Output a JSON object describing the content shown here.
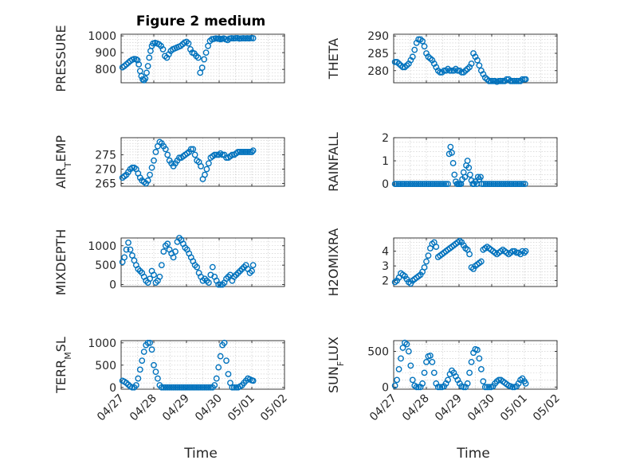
{
  "figure": {
    "title": "Figure 2 medium",
    "xlabel": "Time"
  },
  "chart_data": [
    {
      "type": "scatter",
      "ylabel": "PRESSURE",
      "ylim": [
        720,
        1010
      ],
      "yticks": [
        800,
        900,
        1000
      ],
      "xlim": [
        0,
        5
      ],
      "xticklabels": [],
      "title": "Figure 2 medium",
      "x": [
        0.04,
        0.1,
        0.16,
        0.22,
        0.28,
        0.34,
        0.4,
        0.46,
        0.5,
        0.54,
        0.58,
        0.62,
        0.66,
        0.7,
        0.74,
        0.78,
        0.82,
        0.86,
        0.9,
        0.94,
        0.98,
        1.04,
        1.1,
        1.16,
        1.22,
        1.28,
        1.34,
        1.4,
        1.46,
        1.52,
        1.58,
        1.64,
        1.7,
        1.76,
        1.82,
        1.88,
        1.94,
        2.0,
        2.06,
        2.12,
        2.18,
        2.24,
        2.3,
        2.36,
        2.42,
        2.48,
        2.54,
        2.6,
        2.66,
        2.72,
        2.78,
        2.84,
        2.9,
        2.96,
        3.0,
        3.04,
        3.08,
        3.14,
        3.2,
        3.26,
        3.32,
        3.38,
        3.44,
        3.5,
        3.56,
        3.62,
        3.68,
        3.74,
        3.8,
        3.86,
        3.92,
        3.98,
        4.04
      ],
      "y": [
        812,
        820,
        830,
        840,
        850,
        858,
        862,
        860,
        855,
        830,
        790,
        760,
        740,
        735,
        745,
        780,
        820,
        870,
        910,
        940,
        955,
        958,
        955,
        950,
        940,
        920,
        880,
        870,
        890,
        910,
        920,
        925,
        930,
        935,
        940,
        950,
        960,
        965,
        955,
        920,
        900,
        895,
        880,
        870,
        780,
        810,
        860,
        900,
        940,
        970,
        980,
        982,
        985,
        983,
        984,
        980,
        982,
        985,
        980,
        975,
        984,
        986,
        985,
        986,
        987,
        984,
        985,
        986,
        985,
        986,
        985,
        987,
        986
      ]
    },
    {
      "type": "scatter",
      "ylabel": "THETA",
      "ylim": [
        276.5,
        290.5
      ],
      "yticks": [
        280,
        285,
        290
      ],
      "xlim": [
        0,
        5
      ],
      "xticklabels": [],
      "x": [
        0.04,
        0.1,
        0.16,
        0.22,
        0.28,
        0.34,
        0.4,
        0.46,
        0.52,
        0.58,
        0.64,
        0.7,
        0.76,
        0.82,
        0.88,
        0.94,
        1.0,
        1.06,
        1.12,
        1.18,
        1.24,
        1.3,
        1.36,
        1.42,
        1.48,
        1.54,
        1.6,
        1.66,
        1.72,
        1.78,
        1.84,
        1.9,
        1.96,
        2.02,
        2.08,
        2.14,
        2.2,
        2.26,
        2.32,
        2.38,
        2.44,
        2.5,
        2.56,
        2.62,
        2.68,
        2.74,
        2.8,
        2.86,
        2.92,
        2.98,
        3.04,
        3.1,
        3.16,
        3.22,
        3.28,
        3.34,
        3.4,
        3.46,
        3.52,
        3.58,
        3.64,
        3.7,
        3.76,
        3.82,
        3.88,
        3.94,
        4.0,
        4.04
      ],
      "y": [
        282.5,
        282.5,
        282,
        281.5,
        281,
        281,
        281.5,
        282,
        283,
        284,
        286,
        288,
        289,
        289,
        288.5,
        287,
        285,
        284,
        283.5,
        283,
        282,
        281,
        280,
        279.5,
        279.5,
        280,
        280,
        280.5,
        280,
        280,
        280,
        280.5,
        280,
        280,
        279.5,
        279.5,
        280,
        280.5,
        281,
        282,
        285,
        284,
        283,
        281.5,
        280,
        279,
        278,
        277.5,
        277,
        277,
        277,
        277,
        276.8,
        277,
        277,
        277,
        277,
        277.5,
        277.5,
        277,
        277,
        277,
        277,
        277,
        277,
        277.5,
        277.5,
        277.5
      ]
    },
    {
      "type": "scatter",
      "ylabel": "AIR_TEMP",
      "ylim": [
        264,
        281
      ],
      "yticks": [
        265,
        270,
        275
      ],
      "xlim": [
        0,
        5
      ],
      "xticklabels": [],
      "x": [
        0.04,
        0.1,
        0.16,
        0.22,
        0.28,
        0.34,
        0.4,
        0.46,
        0.52,
        0.58,
        0.64,
        0.7,
        0.76,
        0.82,
        0.88,
        0.94,
        1.0,
        1.06,
        1.12,
        1.18,
        1.24,
        1.3,
        1.36,
        1.42,
        1.48,
        1.54,
        1.6,
        1.66,
        1.72,
        1.78,
        1.84,
        1.9,
        1.96,
        2.02,
        2.08,
        2.14,
        2.2,
        2.26,
        2.32,
        2.38,
        2.44,
        2.5,
        2.56,
        2.62,
        2.68,
        2.74,
        2.8,
        2.86,
        2.92,
        2.98,
        3.04,
        3.1,
        3.16,
        3.22,
        3.28,
        3.34,
        3.4,
        3.46,
        3.52,
        3.58,
        3.64,
        3.7,
        3.76,
        3.82,
        3.88,
        3.94,
        4.0,
        4.04
      ],
      "y": [
        267,
        267.5,
        268,
        269,
        270,
        270.5,
        270.5,
        270,
        268.5,
        267,
        266,
        265.5,
        265,
        266,
        268,
        270.5,
        273,
        276,
        278,
        279.5,
        279,
        278,
        277,
        275,
        273,
        272,
        271,
        272,
        273,
        274,
        274,
        274.5,
        275,
        275.5,
        276,
        277,
        277,
        275,
        273,
        272.5,
        271,
        266.5,
        268,
        270,
        272,
        274,
        274.5,
        275,
        275,
        275,
        275.5,
        275,
        275,
        274,
        274,
        274.5,
        275,
        275,
        275.5,
        276,
        276,
        276,
        276,
        276,
        276,
        276,
        276,
        276.5
      ]
    },
    {
      "type": "scatter",
      "ylabel": "RAINFALL",
      "ylim": [
        -0.1,
        2
      ],
      "yticks": [
        0,
        1,
        2
      ],
      "xlim": [
        0,
        5
      ],
      "xticklabels": [],
      "x": [
        0.04,
        0.1,
        0.16,
        0.22,
        0.28,
        0.34,
        0.4,
        0.46,
        0.52,
        0.58,
        0.64,
        0.7,
        0.76,
        0.82,
        0.88,
        0.94,
        1.0,
        1.06,
        1.12,
        1.18,
        1.24,
        1.3,
        1.36,
        1.42,
        1.48,
        1.54,
        1.6,
        1.66,
        1.7,
        1.74,
        1.78,
        1.82,
        1.86,
        1.9,
        1.94,
        1.98,
        2.02,
        2.06,
        2.1,
        2.14,
        2.18,
        2.22,
        2.26,
        2.3,
        2.34,
        2.38,
        2.42,
        2.46,
        2.5,
        2.54,
        2.58,
        2.62,
        2.66,
        2.7,
        2.76,
        2.82,
        2.88,
        2.94,
        3.0,
        3.06,
        3.12,
        3.18,
        3.24,
        3.3,
        3.36,
        3.42,
        3.48,
        3.54,
        3.6,
        3.66,
        3.72,
        3.78,
        3.84,
        3.9,
        3.96,
        4.02
      ],
      "y": [
        0,
        0,
        0,
        0,
        0,
        0,
        0,
        0,
        0,
        0,
        0,
        0,
        0,
        0,
        0,
        0,
        0,
        0,
        0,
        0,
        0,
        0,
        0,
        0,
        0,
        0,
        0,
        0,
        1.3,
        1.6,
        1.35,
        0.9,
        0.4,
        0.1,
        0,
        0,
        0,
        0,
        0.2,
        0.5,
        0.3,
        0.8,
        1.0,
        0.7,
        0.4,
        0.15,
        0,
        0,
        0.1,
        0,
        0.3,
        0.2,
        0.3,
        0,
        0,
        0,
        0,
        0,
        0,
        0,
        0,
        0,
        0,
        0,
        0,
        0,
        0,
        0,
        0,
        0,
        0,
        0,
        0,
        0,
        0,
        0
      ]
    },
    {
      "type": "scatter",
      "ylabel": "MIXDEPTH",
      "ylim": [
        -50,
        1200
      ],
      "yticks": [
        0,
        500,
        1000
      ],
      "xlim": [
        0,
        5
      ],
      "xticklabels": [],
      "x": [
        0.04,
        0.1,
        0.16,
        0.22,
        0.28,
        0.34,
        0.4,
        0.46,
        0.52,
        0.58,
        0.64,
        0.7,
        0.76,
        0.82,
        0.88,
        0.94,
        1.0,
        1.06,
        1.12,
        1.18,
        1.24,
        1.3,
        1.36,
        1.42,
        1.48,
        1.54,
        1.6,
        1.66,
        1.72,
        1.78,
        1.84,
        1.9,
        1.96,
        2.02,
        2.08,
        2.14,
        2.2,
        2.26,
        2.32,
        2.38,
        2.44,
        2.5,
        2.56,
        2.62,
        2.68,
        2.74,
        2.8,
        2.86,
        2.92,
        2.98,
        3.04,
        3.1,
        3.16,
        3.22,
        3.28,
        3.34,
        3.4,
        3.46,
        3.52,
        3.58,
        3.64,
        3.7,
        3.76,
        3.82,
        3.88,
        3.94,
        4.0,
        4.04
      ],
      "y": [
        580,
        700,
        900,
        1080,
        900,
        750,
        620,
        500,
        400,
        350,
        300,
        200,
        100,
        50,
        150,
        350,
        250,
        50,
        100,
        200,
        500,
        850,
        1000,
        1050,
        900,
        800,
        700,
        850,
        1100,
        1200,
        1150,
        1050,
        950,
        900,
        800,
        700,
        600,
        500,
        450,
        300,
        200,
        100,
        150,
        100,
        50,
        250,
        450,
        200,
        100,
        0,
        0,
        0,
        50,
        150,
        200,
        250,
        100,
        200,
        250,
        300,
        350,
        400,
        450,
        500,
        400,
        300,
        350,
        500
      ]
    },
    {
      "type": "scatter",
      "ylabel": "H2OMIXRA",
      "ylim": [
        1.6,
        4.9
      ],
      "yticks": [
        2,
        3,
        4
      ],
      "xlim": [
        0,
        5
      ],
      "xticklabels": [],
      "x": [
        0.04,
        0.1,
        0.16,
        0.22,
        0.28,
        0.34,
        0.4,
        0.46,
        0.52,
        0.58,
        0.64,
        0.7,
        0.76,
        0.82,
        0.88,
        0.94,
        1.0,
        1.06,
        1.12,
        1.18,
        1.24,
        1.3,
        1.36,
        1.42,
        1.48,
        1.54,
        1.6,
        1.66,
        1.72,
        1.78,
        1.84,
        1.9,
        1.96,
        2.02,
        2.08,
        2.14,
        2.2,
        2.26,
        2.32,
        2.38,
        2.44,
        2.5,
        2.56,
        2.62,
        2.68,
        2.74,
        2.8,
        2.86,
        2.92,
        2.98,
        3.04,
        3.1,
        3.16,
        3.22,
        3.28,
        3.34,
        3.4,
        3.46,
        3.52,
        3.58,
        3.64,
        3.7,
        3.76,
        3.82,
        3.88,
        3.94,
        4.0,
        4.04
      ],
      "y": [
        1.9,
        2.0,
        2.2,
        2.5,
        2.4,
        2.3,
        2.1,
        1.9,
        1.8,
        2.0,
        2.1,
        2.2,
        2.3,
        2.4,
        2.6,
        2.9,
        3.3,
        3.7,
        4.2,
        4.5,
        4.6,
        4.3,
        3.6,
        3.7,
        3.8,
        3.9,
        4.0,
        4.1,
        4.2,
        4.3,
        4.4,
        4.5,
        4.6,
        4.7,
        4.6,
        4.4,
        4.2,
        4.1,
        3.8,
        2.9,
        2.8,
        3.0,
        3.1,
        3.2,
        3.3,
        4.1,
        4.2,
        4.3,
        4.2,
        4.1,
        4.0,
        3.9,
        3.8,
        3.9,
        4.0,
        4.1,
        4.0,
        3.9,
        3.8,
        3.9,
        4.0,
        4.0,
        3.9,
        3.9,
        3.8,
        4.0,
        3.9,
        4.0
      ]
    },
    {
      "type": "scatter",
      "ylabel": "TERR_MSL",
      "ylim": [
        -40,
        1050
      ],
      "yticks": [
        0,
        500,
        1000
      ],
      "xlim": [
        0,
        5
      ],
      "xticklabels": [
        "04/27",
        "04/28",
        "04/29",
        "04/30",
        "05/01",
        "05/02"
      ],
      "x": [
        0.04,
        0.1,
        0.16,
        0.22,
        0.28,
        0.34,
        0.4,
        0.46,
        0.52,
        0.58,
        0.64,
        0.7,
        0.76,
        0.82,
        0.88,
        0.94,
        1.0,
        1.06,
        1.12,
        1.18,
        1.24,
        1.3,
        1.36,
        1.42,
        1.48,
        1.54,
        1.6,
        1.66,
        1.72,
        1.78,
        1.84,
        1.9,
        1.96,
        2.02,
        2.08,
        2.14,
        2.2,
        2.26,
        2.32,
        2.38,
        2.44,
        2.5,
        2.56,
        2.62,
        2.68,
        2.74,
        2.8,
        2.86,
        2.92,
        2.98,
        3.04,
        3.1,
        3.16,
        3.22,
        3.28,
        3.34,
        3.4,
        3.46,
        3.52,
        3.58,
        3.64,
        3.7,
        3.76,
        3.82,
        3.88,
        3.94,
        4.0,
        4.04
      ],
      "y": [
        150,
        130,
        100,
        60,
        20,
        0,
        0,
        50,
        200,
        400,
        600,
        800,
        950,
        1000,
        1000,
        850,
        500,
        350,
        200,
        50,
        0,
        0,
        0,
        0,
        0,
        0,
        0,
        0,
        0,
        0,
        0,
        0,
        0,
        0,
        0,
        0,
        0,
        0,
        0,
        0,
        0,
        0,
        0,
        0,
        0,
        0,
        0,
        50,
        200,
        450,
        700,
        950,
        1000,
        600,
        300,
        100,
        0,
        0,
        0,
        0,
        20,
        50,
        100,
        150,
        200,
        180,
        160,
        150
      ]
    },
    {
      "type": "scatter",
      "ylabel": "SUN_FLUX",
      "ylim": [
        -30,
        650
      ],
      "yticks": [
        0,
        500
      ],
      "xlim": [
        0,
        5
      ],
      "xticklabels": [
        "04/27",
        "04/28",
        "04/29",
        "04/30",
        "05/01",
        "05/02"
      ],
      "x": [
        0.04,
        0.1,
        0.16,
        0.22,
        0.28,
        0.34,
        0.4,
        0.46,
        0.52,
        0.58,
        0.64,
        0.7,
        0.76,
        0.82,
        0.88,
        0.94,
        1.0,
        1.06,
        1.12,
        1.18,
        1.24,
        1.3,
        1.36,
        1.42,
        1.48,
        1.54,
        1.6,
        1.66,
        1.72,
        1.78,
        1.84,
        1.9,
        1.96,
        2.02,
        2.08,
        2.14,
        2.2,
        2.26,
        2.32,
        2.38,
        2.44,
        2.5,
        2.56,
        2.62,
        2.68,
        2.74,
        2.8,
        2.86,
        2.92,
        2.98,
        3.04,
        3.1,
        3.16,
        3.22,
        3.28,
        3.34,
        3.4,
        3.46,
        3.52,
        3.58,
        3.64,
        3.7,
        3.76,
        3.82,
        3.88,
        3.94,
        4.0,
        4.04
      ],
      "y": [
        20,
        100,
        250,
        400,
        550,
        620,
        600,
        500,
        300,
        100,
        20,
        0,
        0,
        0,
        50,
        200,
        350,
        430,
        440,
        350,
        200,
        50,
        0,
        0,
        0,
        10,
        50,
        100,
        180,
        230,
        200,
        150,
        100,
        50,
        10,
        0,
        0,
        50,
        200,
        350,
        480,
        530,
        520,
        400,
        250,
        80,
        0,
        0,
        0,
        0,
        10,
        50,
        80,
        100,
        100,
        80,
        60,
        40,
        20,
        10,
        0,
        0,
        10,
        50,
        100,
        120,
        80,
        50
      ]
    }
  ]
}
